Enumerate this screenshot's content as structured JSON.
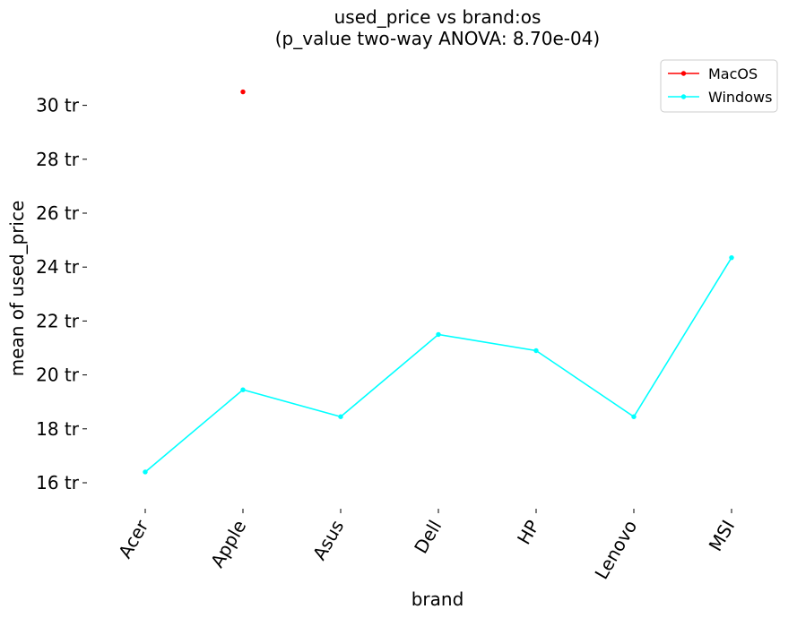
{
  "chart_data": {
    "type": "line",
    "title": "used_price vs brand:os",
    "subtitle": "(p_value two-way ANOVA: 8.70e-04)",
    "xlabel": "brand",
    "ylabel": "mean of used_price",
    "categories": [
      "Acer",
      "Apple",
      "Asus",
      "Dell",
      "HP",
      "Lenovo",
      "MSI"
    ],
    "yticks": [
      16,
      18,
      20,
      22,
      24,
      26,
      28,
      30
    ],
    "ytick_labels": [
      "16 tr",
      "18 tr",
      "20 tr",
      "22 tr",
      "24 tr",
      "26 tr",
      "28 tr",
      "30 tr"
    ],
    "ylim": [
      15.0,
      31.5
    ],
    "grid": false,
    "legend_position": "top-right",
    "series": [
      {
        "name": "MacOS",
        "color": "#ff0000",
        "values": [
          null,
          30.5,
          null,
          null,
          null,
          null,
          null
        ]
      },
      {
        "name": "Windows",
        "color": "#00ffff",
        "values": [
          16.4,
          19.45,
          18.45,
          21.5,
          20.9,
          18.45,
          24.35
        ]
      }
    ]
  }
}
